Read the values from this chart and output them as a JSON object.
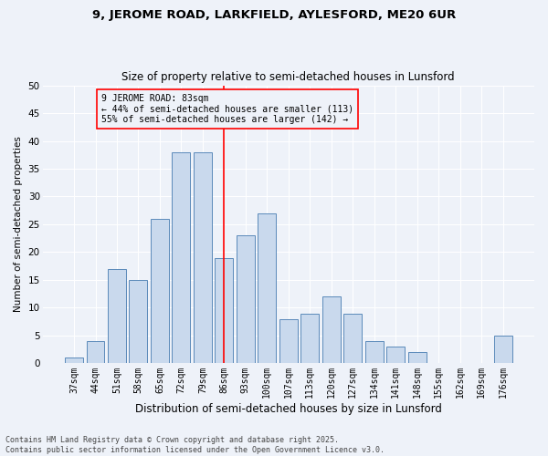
{
  "title1": "9, JEROME ROAD, LARKFIELD, AYLESFORD, ME20 6UR",
  "title2": "Size of property relative to semi-detached houses in Lunsford",
  "xlabel": "Distribution of semi-detached houses by size in Lunsford",
  "ylabel": "Number of semi-detached properties",
  "categories": [
    "37sqm",
    "44sqm",
    "51sqm",
    "58sqm",
    "65sqm",
    "72sqm",
    "79sqm",
    "86sqm",
    "93sqm",
    "100sqm",
    "107sqm",
    "113sqm",
    "120sqm",
    "127sqm",
    "134sqm",
    "141sqm",
    "148sqm",
    "155sqm",
    "162sqm",
    "169sqm",
    "176sqm"
  ],
  "values": [
    1,
    4,
    17,
    15,
    26,
    38,
    38,
    19,
    23,
    27,
    8,
    9,
    12,
    9,
    4,
    3,
    2,
    0,
    0,
    0,
    5
  ],
  "bar_color": "#c9d9ed",
  "bar_edge_color": "#5b8aba",
  "vline_x": 7,
  "vline_color": "red",
  "annotation_title": "9 JEROME ROAD: 83sqm",
  "annotation_line1": "← 44% of semi-detached houses are smaller (113)",
  "annotation_line2": "55% of semi-detached houses are larger (142) →",
  "annotation_box_color": "red",
  "ylim": [
    0,
    50
  ],
  "yticks": [
    0,
    5,
    10,
    15,
    20,
    25,
    30,
    35,
    40,
    45,
    50
  ],
  "footnote": "Contains HM Land Registry data © Crown copyright and database right 2025.\nContains public sector information licensed under the Open Government Licence v3.0.",
  "bg_color": "#eef2f9",
  "grid_color": "#ffffff",
  "title1_fontsize": 9.5,
  "title2_fontsize": 8.5,
  "xlabel_fontsize": 8.5,
  "ylabel_fontsize": 7.5,
  "tick_fontsize": 7.0,
  "annot_fontsize": 7.0,
  "footnote_fontsize": 6.0
}
